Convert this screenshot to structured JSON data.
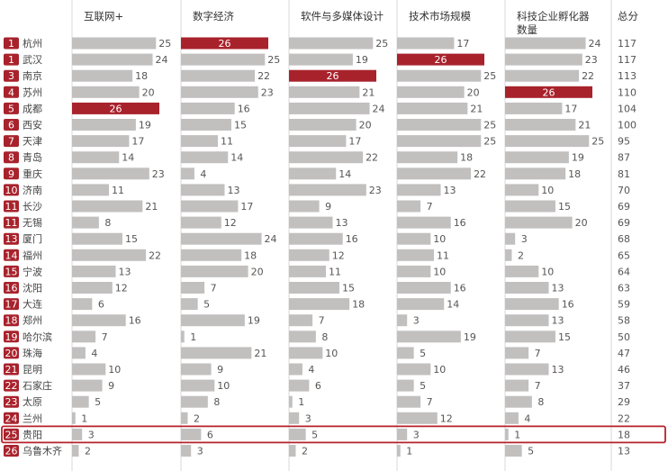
{
  "chart_data": {
    "type": "table",
    "columns": [
      "互联网+",
      "数字经济",
      "软件与多媒体设计",
      "技术市场规模",
      "科技企业孵化器数量",
      "总分"
    ],
    "column_labels": [
      [
        "互联网+"
      ],
      [
        "数字经济"
      ],
      [
        "软件与多媒体设计"
      ],
      [
        "技术市场规模"
      ],
      [
        "科技企业孵化器",
        "数量"
      ],
      [
        "总分"
      ]
    ],
    "rows": [
      {
        "rank": "1",
        "city": "杭州",
        "values": [
          25,
          26,
          25,
          17,
          24
        ],
        "total": 117
      },
      {
        "rank": "1",
        "city": "武汉",
        "values": [
          24,
          25,
          19,
          26,
          23
        ],
        "total": 117
      },
      {
        "rank": "3",
        "city": "南京",
        "values": [
          18,
          22,
          26,
          25,
          22
        ],
        "total": 113
      },
      {
        "rank": "4",
        "city": "苏州",
        "values": [
          20,
          23,
          21,
          20,
          26
        ],
        "total": 110
      },
      {
        "rank": "5",
        "city": "成都",
        "values": [
          26,
          16,
          24,
          21,
          17
        ],
        "total": 104
      },
      {
        "rank": "6",
        "city": "西安",
        "values": [
          19,
          15,
          20,
          25,
          21
        ],
        "total": 100
      },
      {
        "rank": "7",
        "city": "天津",
        "values": [
          17,
          11,
          17,
          25,
          25
        ],
        "total": 95
      },
      {
        "rank": "8",
        "city": "青岛",
        "values": [
          14,
          14,
          22,
          18,
          19
        ],
        "total": 87
      },
      {
        "rank": "9",
        "city": "重庆",
        "values": [
          23,
          4,
          14,
          22,
          18
        ],
        "total": 81
      },
      {
        "rank": "10",
        "city": "济南",
        "values": [
          11,
          13,
          23,
          13,
          10
        ],
        "total": 70
      },
      {
        "rank": "11",
        "city": "长沙",
        "values": [
          21,
          17,
          9,
          7,
          15
        ],
        "total": 69
      },
      {
        "rank": "11",
        "city": "无锡",
        "values": [
          8,
          12,
          13,
          16,
          20
        ],
        "total": 69
      },
      {
        "rank": "13",
        "city": "厦门",
        "values": [
          15,
          24,
          16,
          10,
          3
        ],
        "total": 68
      },
      {
        "rank": "14",
        "city": "福州",
        "values": [
          22,
          18,
          12,
          11,
          2
        ],
        "total": 65
      },
      {
        "rank": "15",
        "city": "宁波",
        "values": [
          13,
          20,
          11,
          10,
          10
        ],
        "total": 64
      },
      {
        "rank": "16",
        "city": "沈阳",
        "values": [
          12,
          7,
          15,
          16,
          13
        ],
        "total": 63
      },
      {
        "rank": "17",
        "city": "大连",
        "values": [
          6,
          5,
          18,
          14,
          16
        ],
        "total": 59
      },
      {
        "rank": "18",
        "city": "郑州",
        "values": [
          16,
          19,
          7,
          3,
          13
        ],
        "total": 58
      },
      {
        "rank": "19",
        "city": "哈尔滨",
        "values": [
          7,
          1,
          8,
          19,
          15
        ],
        "total": 50
      },
      {
        "rank": "20",
        "city": "珠海",
        "values": [
          4,
          21,
          10,
          5,
          7
        ],
        "total": 47
      },
      {
        "rank": "21",
        "city": "昆明",
        "values": [
          10,
          9,
          4,
          10,
          13
        ],
        "total": 46
      },
      {
        "rank": "22",
        "city": "石家庄",
        "values": [
          9,
          10,
          6,
          5,
          7
        ],
        "total": 37
      },
      {
        "rank": "23",
        "city": "太原",
        "values": [
          5,
          8,
          1,
          7,
          8
        ],
        "total": 29
      },
      {
        "rank": "24",
        "city": "兰州",
        "values": [
          1,
          2,
          3,
          12,
          4
        ],
        "total": 22
      },
      {
        "rank": "25",
        "city": "贵阳",
        "values": [
          3,
          6,
          5,
          3,
          1
        ],
        "total": 18,
        "highlight": true
      },
      {
        "rank": "26",
        "city": "乌鲁木齐",
        "values": [
          2,
          3,
          2,
          1,
          5
        ],
        "total": 13
      }
    ],
    "max_value": 26,
    "colors": {
      "bar": "#c2bfbf",
      "bar_top": "#a8222c",
      "rank_badge": "#a8222c",
      "highlight_outline": "#b8202a",
      "divider": "#d9d9d9"
    }
  }
}
